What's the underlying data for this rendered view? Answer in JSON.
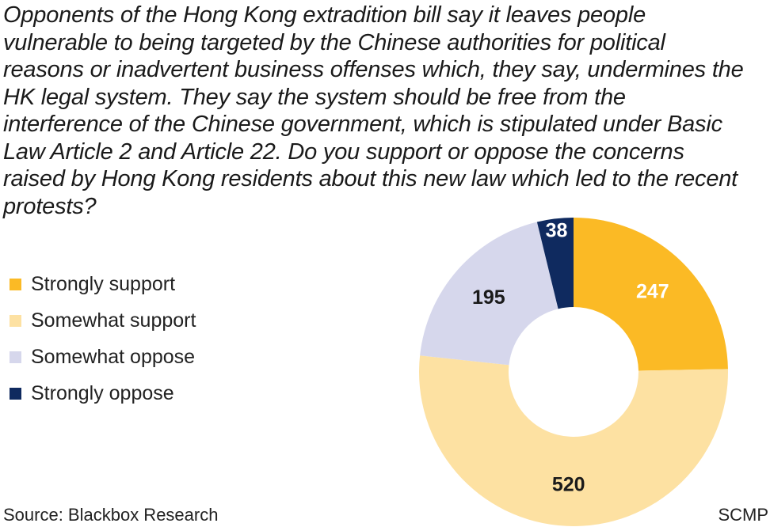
{
  "chart_data": {
    "type": "pie",
    "title": "Opponents of the Hong Kong extradition bill say it leaves people vulnerable to being targeted by the Chinese authorities for political reasons or inadvertent business offenses which, they say, undermines the HK legal system. They say the system should be free from the interference of the Chinese government, which is stipulated under Basic Law Article 2 and Article 22. Do you support or oppose the concerns raised by Hong Kong residents about this new law which led to the recent protests?",
    "donut": true,
    "legend_position": "left",
    "categories": [
      "Strongly support",
      "Somewhat support",
      "Somewhat oppose",
      "Strongly oppose"
    ],
    "values": [
      247,
      520,
      195,
      38
    ],
    "colors": [
      "#FBBA25",
      "#FDE1A2",
      "#D6D7EC",
      "#0F2A5F"
    ],
    "label_colors": [
      "#ffffff",
      "#1a1a1a",
      "#1a1a1a",
      "#ffffff"
    ]
  },
  "footer": {
    "source": "Source: Blackbox Research",
    "credit": "SCMP"
  }
}
